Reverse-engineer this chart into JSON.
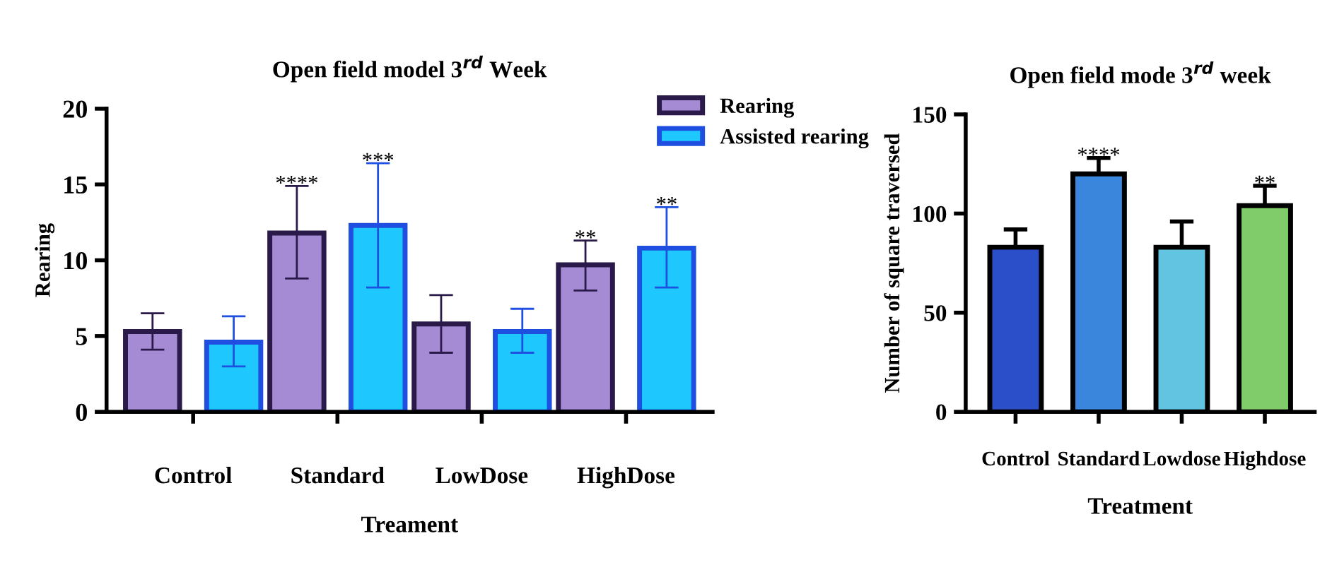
{
  "chart_data": [
    {
      "type": "bar",
      "title": "Open field model 3$^{rd}$ Week",
      "xlabel": "Treament",
      "ylabel": "Rearing",
      "categories": [
        "Control",
        "Standard",
        "LowDose",
        "HighDose"
      ],
      "series": [
        {
          "name": "Rearing",
          "color": "#a48bd4",
          "values": [
            5.3,
            11.8,
            5.8,
            9.7
          ],
          "errors": [
            [
              4.1,
              6.5
            ],
            [
              8.8,
              14.9
            ],
            [
              3.9,
              7.7
            ],
            [
              8.0,
              11.3
            ]
          ],
          "value_labels": [
            null,
            "****",
            null,
            "**"
          ]
        },
        {
          "name": "Assisted rearing",
          "color": "#1ec8ff",
          "values": [
            4.6,
            12.3,
            5.3,
            10.8
          ],
          "errors": [
            [
              3.0,
              6.3
            ],
            [
              8.2,
              16.4
            ],
            [
              3.9,
              6.8
            ],
            [
              8.2,
              13.5
            ]
          ],
          "value_labels": [
            null,
            "***",
            null,
            "**"
          ]
        }
      ],
      "ylim": [
        0,
        20
      ],
      "yticks": [
        0,
        5,
        10,
        15,
        20
      ],
      "grid": false,
      "legend": "top right"
    },
    {
      "type": "bar",
      "title": "Open field mode 3$^{rd}$ week",
      "xlabel": "Treatment",
      "ylabel": "Number of square traversed",
      "categories": [
        "Control",
        "Standard",
        "Lowdose",
        "Highdose"
      ],
      "values": [
        83,
        120,
        83,
        104
      ],
      "colors": [
        "#2a4fc8",
        "#3a86dc",
        "#62c4e0",
        "#80cc6a"
      ],
      "errors": [
        [
          83,
          92
        ],
        [
          120,
          128
        ],
        [
          83,
          96
        ],
        [
          104,
          114
        ]
      ],
      "value_labels": [
        null,
        "****",
        null,
        "**"
      ],
      "ylim": [
        0,
        150
      ],
      "yticks": [
        0,
        50,
        100,
        150
      ],
      "grid": false
    }
  ]
}
